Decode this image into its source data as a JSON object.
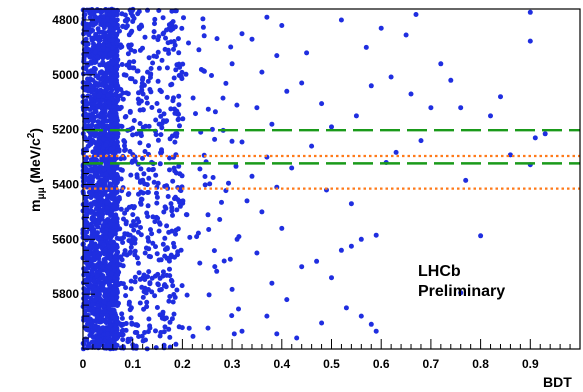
{
  "chart_data": {
    "type": "scatter",
    "title": "",
    "xlabel": "BDT",
    "ylabel_main": "m",
    "ylabel_sub": "μμ",
    "ylabel_unit": " (MeV/c",
    "ylabel_sup": "2",
    "ylabel_close": ")",
    "xlim": [
      0,
      1.0
    ],
    "ylim": [
      4760,
      6000
    ],
    "y_inverted": true,
    "grid": false,
    "marker_color": "#1f2ee0",
    "x_ticks": [
      0,
      0.1,
      0.2,
      0.3,
      0.4,
      0.5,
      0.6,
      0.7,
      0.8,
      0.9
    ],
    "x_tick_labels": [
      "0",
      "0.1",
      "0.2",
      "0.3",
      "0.4",
      "0.5",
      "0.6",
      "0.7",
      "0.8",
      "0.9"
    ],
    "y_ticks": [
      4800,
      5000,
      5200,
      5400,
      5600,
      5800
    ],
    "y_tick_labels": [
      "4800",
      "5000",
      "5200",
      "5400",
      "5600",
      "5800"
    ],
    "reference_lines": [
      {
        "y": 5202,
        "style": "dashed",
        "color": "#1a9a1a"
      },
      {
        "y": 5323,
        "style": "dashed",
        "color": "#1a9a1a"
      },
      {
        "y": 5296,
        "style": "dotted",
        "color": "#ff7a1a"
      },
      {
        "y": 5415,
        "style": "dotted",
        "color": "#ff7a1a"
      }
    ],
    "annotation": [
      "LHCb",
      "Preliminary"
    ],
    "series": [
      {
        "points": [
          [
            0.9,
            4772
          ],
          [
            0.9,
            4877
          ],
          [
            0.52,
            4800
          ],
          [
            0.65,
            4855
          ],
          [
            0.72,
            4960
          ],
          [
            0.62,
            5008
          ],
          [
            0.76,
            5120
          ],
          [
            0.82,
            5150
          ],
          [
            0.84,
            5080
          ],
          [
            0.93,
            5215
          ],
          [
            0.91,
            5230
          ],
          [
            0.86,
            5292
          ],
          [
            0.9,
            5328
          ],
          [
            0.77,
            5385
          ],
          [
            0.63,
            5283
          ],
          [
            0.55,
            5150
          ],
          [
            0.58,
            5040
          ],
          [
            0.45,
            4920
          ],
          [
            0.44,
            5030
          ],
          [
            0.48,
            5105
          ],
          [
            0.5,
            5190
          ],
          [
            0.46,
            5260
          ],
          [
            0.42,
            5340
          ],
          [
            0.49,
            5420
          ],
          [
            0.54,
            5470
          ],
          [
            0.59,
            5585
          ],
          [
            0.56,
            5600
          ],
          [
            0.52,
            5640
          ],
          [
            0.54,
            5625
          ],
          [
            0.8,
            5587
          ],
          [
            0.76,
            5795
          ],
          [
            0.47,
            5680
          ],
          [
            0.5,
            5740
          ],
          [
            0.53,
            5850
          ],
          [
            0.56,
            5880
          ],
          [
            0.58,
            5910
          ],
          [
            0.59,
            5935
          ],
          [
            0.48,
            5905
          ],
          [
            0.43,
            5960
          ],
          [
            0.39,
            5945
          ],
          [
            0.32,
            5935
          ],
          [
            0.37,
            5880
          ],
          [
            0.41,
            5820
          ],
          [
            0.38,
            5760
          ],
          [
            0.44,
            5700
          ],
          [
            0.35,
            5650
          ],
          [
            0.31,
            5600
          ],
          [
            0.4,
            5560
          ],
          [
            0.36,
            5500
          ],
          [
            0.33,
            5460
          ],
          [
            0.39,
            5410
          ],
          [
            0.34,
            5370
          ],
          [
            0.37,
            5300
          ],
          [
            0.32,
            5245
          ],
          [
            0.38,
            5180
          ],
          [
            0.35,
            5120
          ],
          [
            0.41,
            5060
          ],
          [
            0.36,
            4990
          ],
          [
            0.39,
            4930
          ],
          [
            0.34,
            4870
          ],
          [
            0.4,
            4820
          ],
          [
            0.37,
            4790
          ],
          [
            0.32,
            4850
          ],
          [
            0.3,
            4960
          ],
          [
            0.61,
            5320
          ],
          [
            0.68,
            5240
          ],
          [
            0.7,
            5120
          ],
          [
            0.66,
            5070
          ],
          [
            0.74,
            5020
          ],
          [
            0.57,
            4900
          ],
          [
            0.6,
            4830
          ],
          [
            0.67,
            4780
          ]
        ]
      }
    ]
  }
}
